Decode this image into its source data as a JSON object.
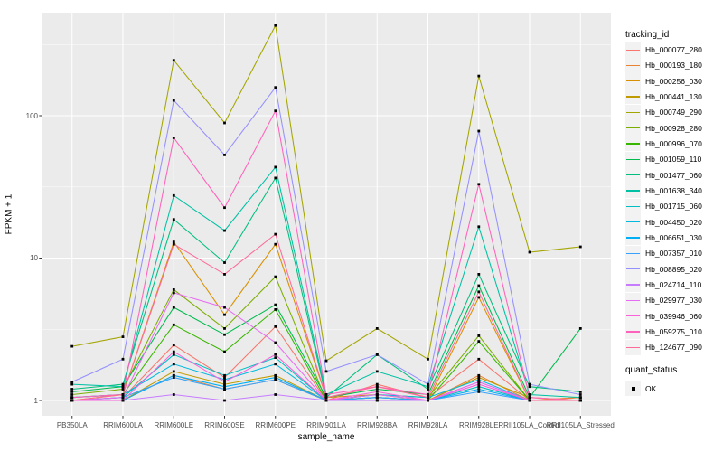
{
  "chart_data": {
    "type": "line",
    "title": "",
    "xlabel": "sample_name",
    "ylabel": "FPKM + 1",
    "y_scale": "log10",
    "y_ticks": [
      1,
      10,
      100
    ],
    "y_minor_gridlines": [
      3.16,
      31.6,
      316
    ],
    "ylim": [
      0.78,
      530
    ],
    "grid": "on",
    "panel_background": "#EBEBEB",
    "gridline_color": "#FFFFFF",
    "categories": [
      "PB350LA",
      "RRIM600LA",
      "RRIM600LE",
      "RRIM600SE",
      "RRIM600PE",
      "RRIM901LA",
      "RRIM928BA",
      "RRIM928LA",
      "RRIM928LE",
      "RRII105LA_Control",
      "RRII105LA_Stressed"
    ],
    "legend": {
      "position": "right",
      "color_title": "tracking_id",
      "shape_title": "quant_status",
      "shape_items": [
        "OK"
      ]
    },
    "point_marker": {
      "shape": "filled-square",
      "color": "#000000"
    },
    "series": [
      {
        "name": "Hb_000077_280",
        "color": "#F8766D",
        "values": [
          1.0,
          1.05,
          2.45,
          1.45,
          3.3,
          1.0,
          1.3,
          1.05,
          1.95,
          1.0,
          1.05
        ]
      },
      {
        "name": "Hb_000193_180",
        "color": "#EA8331",
        "values": [
          1.0,
          1.0,
          1.5,
          1.2,
          1.4,
          1.0,
          1.05,
          1.0,
          1.5,
          1.0,
          1.05
        ]
      },
      {
        "name": "Hb_000256_030",
        "color": "#D89000",
        "values": [
          1.0,
          1.1,
          13.0,
          4.0,
          12.5,
          1.05,
          1.1,
          1.0,
          5.3,
          1.0,
          1.0
        ]
      },
      {
        "name": "Hb_000441_130",
        "color": "#C09B00",
        "values": [
          1.0,
          1.0,
          1.6,
          1.3,
          1.5,
          1.0,
          1.0,
          1.0,
          1.45,
          1.05,
          1.0
        ]
      },
      {
        "name": "Hb_000749_290",
        "color": "#A3A500",
        "values": [
          2.4,
          2.8,
          245,
          89,
          430,
          1.9,
          3.2,
          1.95,
          190,
          11,
          12
        ]
      },
      {
        "name": "Hb_000928_280",
        "color": "#7CAE00",
        "values": [
          1.1,
          1.2,
          6.0,
          3.2,
          7.4,
          1.0,
          1.1,
          1.05,
          2.85,
          1.0,
          1.0
        ]
      },
      {
        "name": "Hb_000996_070",
        "color": "#39B600",
        "values": [
          1.05,
          1.1,
          3.4,
          2.2,
          4.35,
          1.0,
          1.05,
          1.0,
          2.6,
          1.0,
          1.0
        ]
      },
      {
        "name": "Hb_001059_110",
        "color": "#00BB4E",
        "values": [
          1.15,
          1.25,
          4.5,
          2.9,
          4.7,
          1.05,
          1.2,
          1.1,
          6.4,
          1.05,
          3.2
        ]
      },
      {
        "name": "Hb_001477_060",
        "color": "#00BF7D",
        "values": [
          1.2,
          1.3,
          18.7,
          9.3,
          36.5,
          1.05,
          2.1,
          1.2,
          7.7,
          1.25,
          1.15
        ]
      },
      {
        "name": "Hb_001638_340",
        "color": "#00C1A3",
        "values": [
          1.3,
          1.25,
          27.5,
          15.6,
          43.5,
          1.1,
          1.6,
          1.25,
          16.6,
          1.1,
          1.05
        ]
      },
      {
        "name": "Hb_001715_060",
        "color": "#00BFC4",
        "values": [
          1.0,
          1.05,
          2.1,
          1.5,
          2.0,
          1.0,
          1.05,
          1.0,
          1.25,
          1.0,
          1.0
        ]
      },
      {
        "name": "Hb_004450_020",
        "color": "#00BAE0",
        "values": [
          1.05,
          1.1,
          1.8,
          1.4,
          1.8,
          1.0,
          1.1,
          1.05,
          1.4,
          1.0,
          1.0
        ]
      },
      {
        "name": "Hb_006651_030",
        "color": "#00B0F6",
        "values": [
          1.0,
          1.0,
          1.5,
          1.25,
          1.45,
          1.0,
          1.0,
          1.0,
          1.2,
          1.0,
          1.0
        ]
      },
      {
        "name": "Hb_007357_010",
        "color": "#35A2FF",
        "values": [
          1.0,
          1.05,
          1.45,
          1.2,
          1.4,
          1.0,
          1.05,
          1.0,
          1.15,
          1.0,
          1.0
        ]
      },
      {
        "name": "Hb_008895_020",
        "color": "#9590FF",
        "values": [
          1.35,
          1.95,
          128,
          53,
          158,
          1.6,
          2.1,
          1.3,
          78,
          1.3,
          1.1
        ]
      },
      {
        "name": "Hb_024714_110",
        "color": "#C77CFF",
        "values": [
          1.0,
          1.0,
          1.1,
          1.0,
          1.1,
          1.0,
          1.0,
          1.0,
          1.35,
          1.0,
          1.0
        ]
      },
      {
        "name": "Hb_029977_030",
        "color": "#E76BF3",
        "values": [
          1.0,
          1.05,
          5.7,
          4.5,
          2.55,
          1.0,
          1.1,
          1.0,
          1.35,
          1.0,
          1.0
        ]
      },
      {
        "name": "Hb_039946_060",
        "color": "#FA62DB",
        "values": [
          1.0,
          1.0,
          2.2,
          1.35,
          2.1,
          1.0,
          1.15,
          1.0,
          1.3,
          1.0,
          1.0
        ]
      },
      {
        "name": "Hb_059275_010",
        "color": "#FF62BC",
        "values": [
          1.05,
          1.1,
          70,
          22.6,
          108,
          1.1,
          1.25,
          1.1,
          33,
          1.05,
          1.0
        ]
      },
      {
        "name": "Hb_124677_090",
        "color": "#FF6A98",
        "values": [
          1.0,
          1.1,
          12.5,
          7.7,
          14.7,
          1.05,
          1.25,
          1.05,
          5.8,
          1.0,
          1.0
        ]
      }
    ]
  }
}
